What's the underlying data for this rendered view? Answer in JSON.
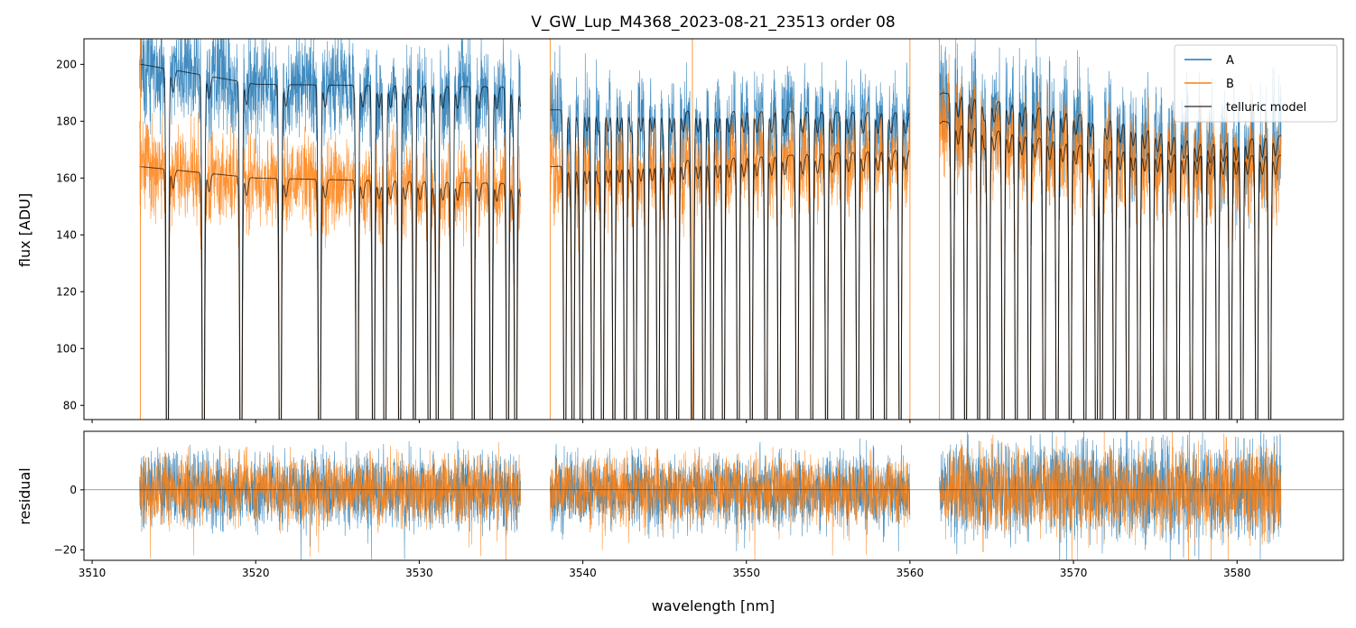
{
  "chart_data": [
    {
      "type": "line",
      "panel": "spectrum",
      "title": "V_GW_Lup_M4368_2023-08-21_23513  order 08",
      "xlabel": "",
      "ylabel": "flux [ADU]",
      "xlim": [
        3509.5,
        3586.5
      ],
      "ylim": [
        75,
        209
      ],
      "yticks": [
        80,
        100,
        120,
        140,
        160,
        180,
        200
      ],
      "xticks": [
        3510,
        3520,
        3530,
        3540,
        3550,
        3560,
        3570,
        3580
      ],
      "segments": [
        [
          3512.9,
          3536.2
        ],
        [
          3538.0,
          3560.0
        ],
        [
          3561.8,
          3582.7
        ]
      ],
      "legend_position": "top-right",
      "series": [
        {
          "name": "A",
          "color": "#1f77b4",
          "baseline": [
            [
              3513,
              200
            ],
            [
              3520,
              193
            ],
            [
              3536,
              192
            ],
            [
              3538,
              184
            ],
            [
              3560,
              183
            ],
            [
              3562,
              190
            ],
            [
              3572,
              181
            ],
            [
              3578,
              172
            ],
            [
              3582.7,
              175
            ]
          ],
          "noise": 9
        },
        {
          "name": "B",
          "color": "#ff7f0e",
          "baseline": [
            [
              3513,
              164
            ],
            [
              3520,
              160
            ],
            [
              3536,
              158
            ],
            [
              3538,
              164
            ],
            [
              3560,
              170
            ],
            [
              3562,
              180
            ],
            [
              3572,
              170
            ],
            [
              3578,
              168
            ],
            [
              3582.7,
              168
            ]
          ],
          "noise": 8
        },
        {
          "name": "telluric model",
          "color": "#000000",
          "noise": 0
        }
      ],
      "absorption_lines": [
        3514.6,
        3516.8,
        3519.1,
        3521.5,
        3523.9,
        3526.2,
        3527.2,
        3527.9,
        3528.8,
        3529.7,
        3530.6,
        3531.1,
        3532.0,
        3533.3,
        3534.4,
        3535.4,
        3535.9,
        3538.9,
        3539.4,
        3539.9,
        3540.6,
        3541.2,
        3541.9,
        3542.6,
        3543.2,
        3543.9,
        3544.6,
        3545.1,
        3545.8,
        3546.7,
        3547.4,
        3547.9,
        3548.6,
        3549.5,
        3550.3,
        3551.2,
        3552.0,
        3553.1,
        3554.0,
        3554.9,
        3555.9,
        3556.8,
        3557.7,
        3558.5,
        3559.4,
        3562.6,
        3563.4,
        3564.2,
        3564.8,
        3565.7,
        3566.5,
        3567.3,
        3568.2,
        3569.0,
        3569.8,
        3570.7,
        3571.4,
        3571.7,
        3572.5,
        3573.3,
        3574.0,
        3574.8,
        3575.6,
        3576.4,
        3577.2,
        3578.0,
        3578.8,
        3579.6,
        3580.3,
        3581.2,
        3582.0
      ]
    },
    {
      "type": "line",
      "panel": "residual",
      "xlabel": "wavelength [nm]",
      "ylabel": "residual",
      "xlim": [
        3509.5,
        3586.5
      ],
      "ylim": [
        -23.5,
        19.5
      ],
      "yticks": [
        -20,
        0
      ],
      "xticks": [
        3510,
        3520,
        3530,
        3540,
        3550,
        3560,
        3570,
        3580
      ],
      "series": [
        {
          "name": "A",
          "color": "#1f77b4",
          "amplitude": 11
        },
        {
          "name": "B",
          "color": "#ff7f0e",
          "amplitude": 10
        }
      ],
      "zero_line": 0
    }
  ]
}
